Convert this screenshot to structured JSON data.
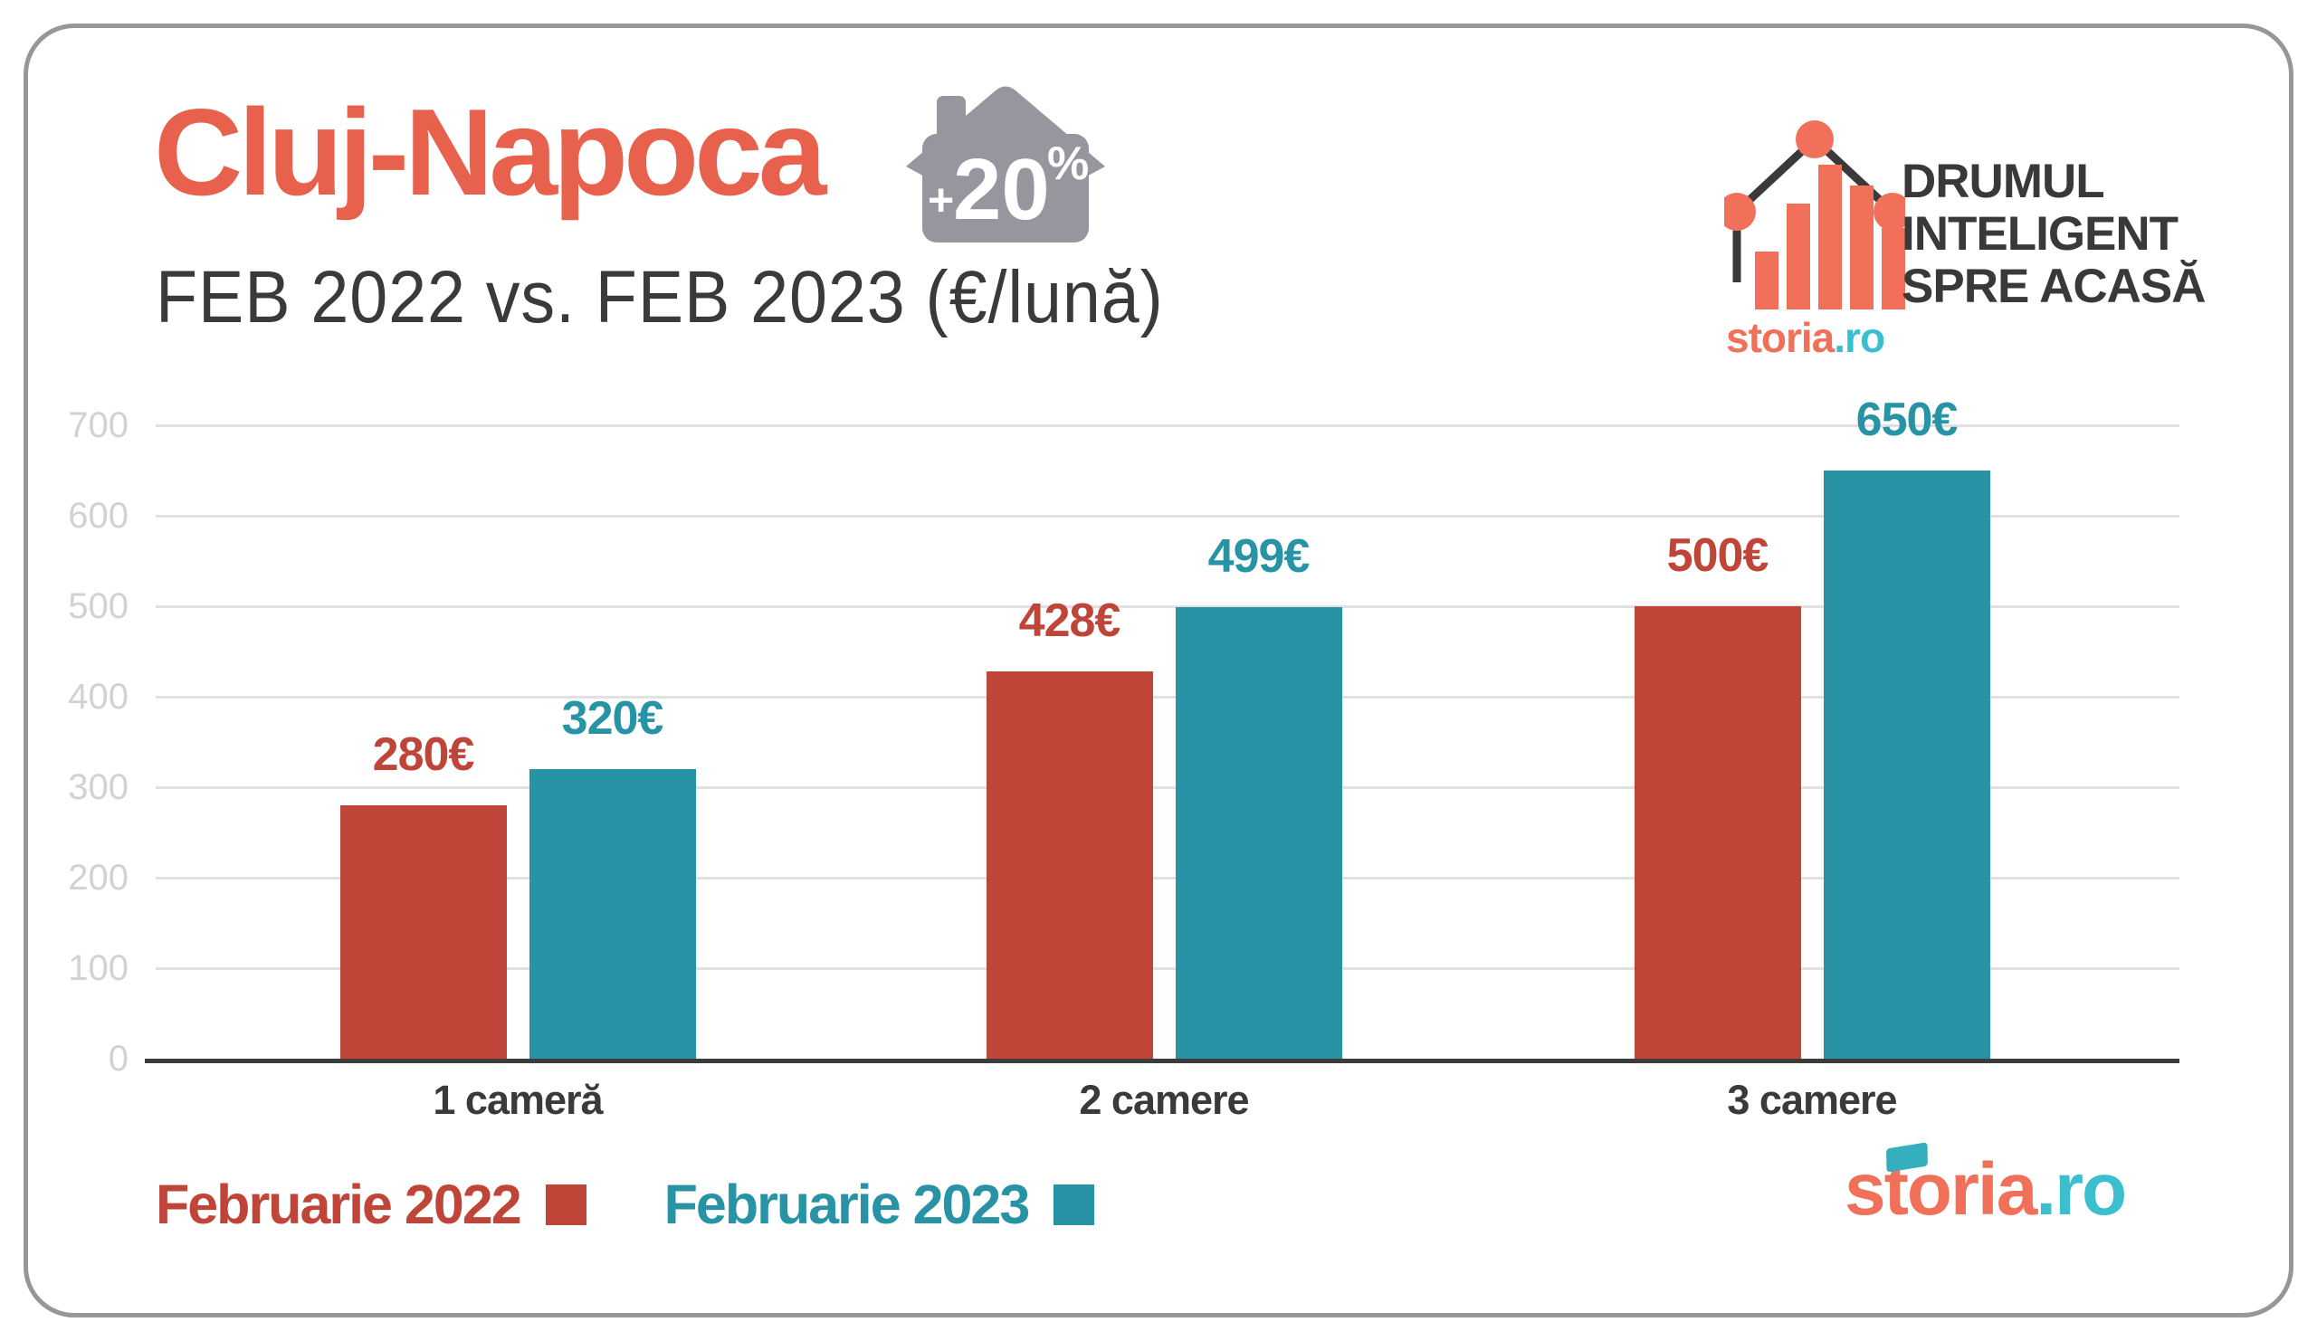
{
  "header": {
    "title": "Cluj-Napoca",
    "badge": {
      "plus": "+",
      "value": "20",
      "percent": "%"
    },
    "subtitle": "FEB 2022 vs. FEB 2023 (€/lună)"
  },
  "brand_top": {
    "tagline_line1": "DRUMUL",
    "tagline_line2": "INTELIGENT",
    "tagline_line3": "SPRE ACASĂ",
    "logo_orange": "storia",
    "logo_teal": ".ro"
  },
  "brand_bottom": {
    "logo_orange": "storia",
    "logo_teal": ".ro"
  },
  "chart_data": {
    "type": "bar",
    "title": "Cluj-Napoca",
    "subtitle": "FEB 2022 vs. FEB 2023 (€/lună)",
    "unit": "€/lună",
    "annotation": "+20%",
    "categories": [
      "1 cameră",
      "2 camere",
      "3 camere"
    ],
    "series": [
      {
        "name": "Februarie 2022",
        "color": "#BE4538",
        "values": [
          280,
          428,
          500
        ],
        "labels": [
          "280€",
          "428€",
          "500€"
        ]
      },
      {
        "name": "Februarie 2023",
        "color": "#2793A5",
        "values": [
          320,
          499,
          650
        ],
        "labels": [
          "320€",
          "499€",
          "650€"
        ]
      }
    ],
    "ylim": [
      0,
      700
    ],
    "yticks": [
      0,
      100,
      200,
      300,
      400,
      500,
      600,
      700
    ],
    "grid": true,
    "legend_position": "bottom-left"
  },
  "colors": {
    "accent_coral": "#E8614D",
    "bar_red": "#BE4538",
    "bar_teal": "#2793A5",
    "badge_gray": "#98959E",
    "text_dark": "#3A393B",
    "tick_gray": "#D2D2D4",
    "grid_gray": "#E1E1E3",
    "logo_orange": "#F0705A",
    "logo_teal": "#3BBFCF",
    "border_gray": "#98959B"
  }
}
